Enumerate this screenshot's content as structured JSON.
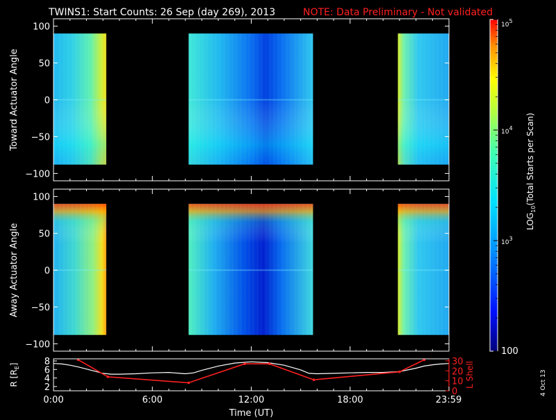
{
  "header": {
    "title": "TWINS1: Start Counts: 26 Sep (day 269), 2013",
    "note": "NOTE: Data Preliminary - Not validated",
    "note_color": "#ff2020"
  },
  "side_stamp": "4 Oct 13",
  "colorbar": {
    "label_main": "LOG",
    "label_sub": "10",
    "label_rest": "(Total Starts per Scan)",
    "scale": "log",
    "range": [
      100,
      100000
    ],
    "ticks": [
      {
        "value": 100,
        "base": "100",
        "exp": ""
      },
      {
        "value": 1000,
        "base": "10",
        "exp": "3"
      },
      {
        "value": 10000,
        "base": "10",
        "exp": "4"
      },
      {
        "value": 100000,
        "base": "10",
        "exp": "5"
      }
    ]
  },
  "chart_data": [
    {
      "type": "heatmap",
      "ylabel": "Toward Actuator Angle",
      "xlim": [
        0,
        24
      ],
      "ylim": [
        -110,
        110
      ],
      "yticks": [
        {
          "v": 100,
          "t": "100"
        },
        {
          "v": 50,
          "t": "50"
        },
        {
          "v": 0,
          "t": "0"
        },
        {
          "v": -50,
          "t": "−50"
        },
        {
          "v": -100,
          "t": "−100"
        }
      ],
      "y_data_range": [
        -88,
        90
      ],
      "segments": [
        {
          "t0": 0.0,
          "t1": 3.2,
          "profile": "early"
        },
        {
          "t0": 8.2,
          "t1": 15.75,
          "profile": "mid_toward"
        },
        {
          "t0": 20.9,
          "t1": 24.0,
          "profile": "late"
        }
      ]
    },
    {
      "type": "heatmap",
      "ylabel": "Away Actuator Angle",
      "xlim": [
        0,
        24
      ],
      "ylim": [
        -110,
        110
      ],
      "yticks": [
        {
          "v": 100,
          "t": "100"
        },
        {
          "v": 50,
          "t": "50"
        },
        {
          "v": 0,
          "t": "0"
        },
        {
          "v": -50,
          "t": "−50"
        },
        {
          "v": -100,
          "t": "−100"
        }
      ],
      "y_data_range": [
        -88,
        90
      ],
      "segments": [
        {
          "t0": 0.0,
          "t1": 3.2,
          "profile": "early_away"
        },
        {
          "t0": 8.2,
          "t1": 15.75,
          "profile": "mid_away"
        },
        {
          "t0": 20.9,
          "t1": 24.0,
          "profile": "late"
        }
      ]
    },
    {
      "type": "line",
      "xlabel": "Time (UT)",
      "ylabel_left": "R [R",
      "ylabel_left_sub": "E",
      "ylabel_left_end": "]",
      "ylabel_right": "L Shell",
      "xlim": [
        0,
        24
      ],
      "xticks": [
        {
          "v": 0,
          "t": "0:00"
        },
        {
          "v": 6,
          "t": "6:00"
        },
        {
          "v": 12,
          "t": "12:00"
        },
        {
          "v": 18,
          "t": "18:00"
        },
        {
          "v": 23.98,
          "t": "23:59"
        }
      ],
      "ylim_left": [
        1,
        8.5
      ],
      "yticks_left": [
        {
          "v": 2,
          "t": "2"
        },
        {
          "v": 4,
          "t": "4"
        },
        {
          "v": 6,
          "t": "6"
        },
        {
          "v": 8,
          "t": "8"
        }
      ],
      "ylim_right": [
        0,
        32
      ],
      "yticks_right": [
        {
          "v": 0,
          "t": "0"
        },
        {
          "v": 10,
          "t": "10"
        },
        {
          "v": 20,
          "t": "20"
        },
        {
          "v": 30,
          "t": "30"
        }
      ],
      "series": [
        {
          "axis": "left",
          "color": "#ffffff",
          "x": [
            0,
            0.5,
            1,
            1.5,
            2,
            2.5,
            3,
            3.5,
            4,
            5,
            6,
            7,
            8,
            8.5,
            9,
            10,
            11,
            12,
            13,
            14,
            15,
            15.5,
            16,
            17,
            18,
            19,
            20,
            21,
            22,
            22.5,
            23,
            23.5,
            24
          ],
          "y": [
            7.4,
            7.3,
            7.0,
            6.6,
            6.1,
            5.6,
            5.1,
            4.9,
            4.9,
            5.0,
            5.2,
            5.3,
            5.0,
            5.2,
            5.8,
            6.8,
            7.5,
            7.8,
            7.6,
            7.0,
            5.9,
            5.1,
            5.0,
            5.1,
            5.2,
            5.3,
            5.3,
            5.5,
            6.3,
            6.8,
            7.1,
            7.3,
            7.4
          ]
        },
        {
          "axis": "right",
          "color": "#ff2020",
          "x": [
            1.5,
            3.3,
            8.2,
            11.6,
            13.1,
            15.8,
            21.0,
            22.5
          ],
          "y": [
            31,
            14,
            8,
            27,
            27,
            11,
            19,
            31
          ]
        }
      ]
    }
  ]
}
